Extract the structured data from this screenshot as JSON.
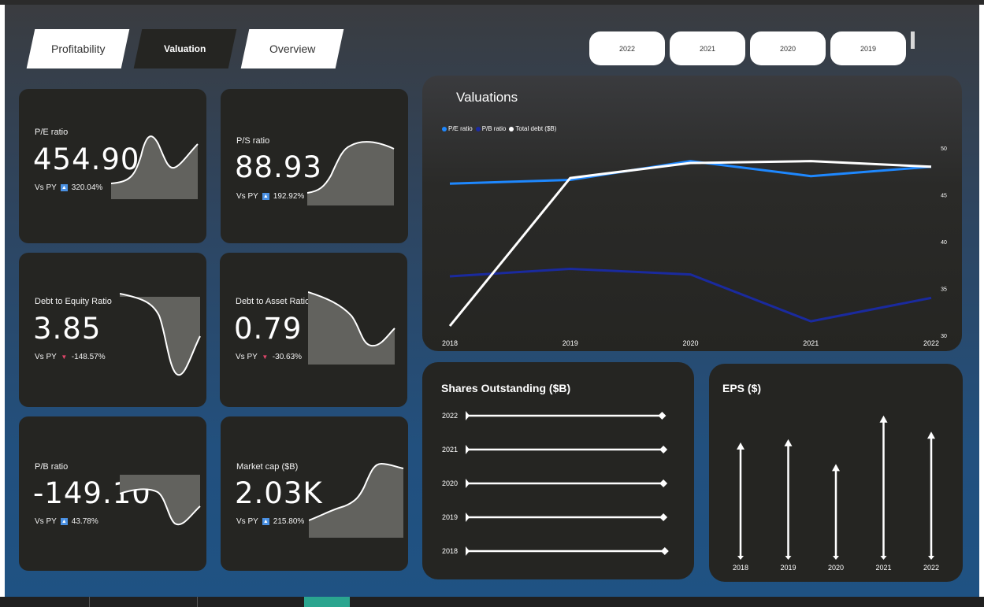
{
  "nav": {
    "tabs": [
      {
        "label": "Profitability"
      },
      {
        "label": "Valuation"
      },
      {
        "label": "Overview"
      }
    ]
  },
  "year_slicer": [
    "2022",
    "2021",
    "2020",
    "2019"
  ],
  "kpis": {
    "pe": {
      "label": "P/E ratio",
      "value": "454.90",
      "vs_label": "Vs PY",
      "change": "320.04%",
      "trend": "up"
    },
    "ps": {
      "label": "P/S ratio",
      "value": "88.93",
      "vs_label": "Vs PY",
      "change": "192.92%",
      "trend": "up"
    },
    "de": {
      "label": "Debt to Equity Ratio",
      "value": "3.85",
      "vs_label": "Vs PY",
      "change": "-148.57%",
      "trend": "down"
    },
    "da": {
      "label": "Debt to Asset Ratio",
      "value": "0.79",
      "vs_label": "Vs PY",
      "change": "-30.63%",
      "trend": "down"
    },
    "pb": {
      "label": "P/B ratio",
      "value": "-149.10",
      "vs_label": "Vs PY",
      "change": "43.78%",
      "trend": "up"
    },
    "mc": {
      "label": "Market cap ($B)",
      "value": "2.03K",
      "vs_label": "Vs PY",
      "change": "215.80%",
      "trend": "up"
    }
  },
  "colors": {
    "pe_series": "#1e88ff",
    "pb_series": "#1a2a9e",
    "debt_series": "#ffffff",
    "up_badge": "#4a90e2",
    "down_marker": "#e0466a"
  },
  "valuations": {
    "title": "Valuations",
    "chart_data": {
      "type": "line",
      "x": [
        "2018",
        "2019",
        "2020",
        "2021",
        "2022"
      ],
      "y_ticks": [
        "50",
        "45",
        "40",
        "35",
        "30"
      ],
      "ylim": [
        30,
        50
      ],
      "series": [
        {
          "name": "P/E ratio",
          "values": [
            46.2,
            46.6,
            48.6,
            47.0,
            48.0
          ]
        },
        {
          "name": "P/B ratio",
          "values": [
            36.3,
            37.1,
            36.5,
            31.5,
            34.0
          ]
        },
        {
          "name": "Total debt ($B)",
          "values": [
            31.0,
            46.8,
            48.4,
            48.6,
            48.0
          ]
        }
      ]
    }
  },
  "shares": {
    "title": "Shares Outstanding ($B)",
    "chart_data": {
      "type": "bar",
      "categories": [
        "2022",
        "2021",
        "2020",
        "2019",
        "2018"
      ],
      "values": [
        2.94,
        2.96,
        2.96,
        2.96,
        2.98
      ],
      "xlim": [
        0,
        3.0
      ]
    }
  },
  "eps": {
    "title": "EPS ($)",
    "chart_data": {
      "type": "bar",
      "categories": [
        "2018",
        "2019",
        "2020",
        "2021",
        "2022"
      ],
      "values": [
        1.05,
        1.08,
        0.85,
        1.3,
        1.15
      ],
      "ylim": [
        0,
        1.4
      ]
    }
  }
}
